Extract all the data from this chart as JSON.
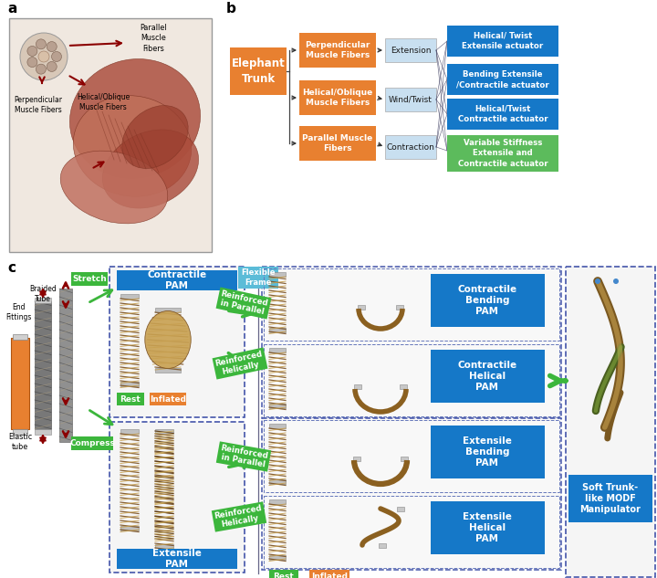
{
  "panel_a_label": "a",
  "panel_b_label": "b",
  "panel_c_label": "c",
  "elephant_trunk_text": "Elephant\nTrunk",
  "fiber_types": [
    "Perpendicular\nMuscle Fibers",
    "Helical/Oblique\nMuscle Fibers",
    "Parallel Muscle\nFibers"
  ],
  "motions": [
    "Extension",
    "Wind/Twist",
    "Contraction"
  ],
  "actuators_blue": [
    "Helical/ Twist\nExtensile actuator",
    "Bending Extensile\n/Contractile actuator",
    "Helical/Twist\nContractile actuator"
  ],
  "actuator_green": "Variable Stiffness\nExtensile and\nContractile actuator",
  "orange_color": "#E07820",
  "blue_color": "#1578C8",
  "green_color": "#4CAF50",
  "light_blue_bg": "#C8DFF0",
  "green_arrow_color": "#5CB85C",
  "red_arrow_color": "#CC0000",
  "pam_labels": [
    "Contractile\nPAM",
    "Extensile\nPAM"
  ],
  "reinforce_labels": [
    "Reinforced\nin Parallel",
    "Reinforced\nHelically",
    "Reinforced\nin Parallel",
    "Reinforced\nHelically"
  ],
  "right_pam_labels": [
    "Contractile\nBending\nPAM",
    "Contractile\nHelical\nPAM",
    "Extensile\nBending\nPAM",
    "Extensile\nHelical\nPAM"
  ],
  "final_label": "Soft Trunk-\nlike MODF\nManipulator",
  "flexible_frame": "Flexible\nFrame",
  "rest_label": "Rest",
  "inflated_label": "Inflated"
}
